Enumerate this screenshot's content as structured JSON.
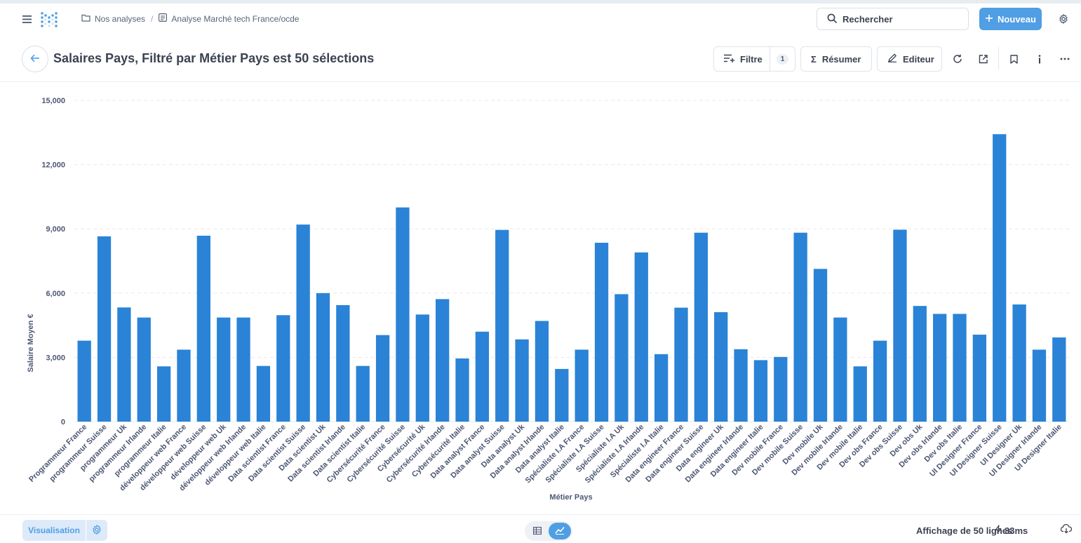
{
  "breadcrumb": {
    "collection": "Nos analyses",
    "separator": "/",
    "model": "Analyse Marché tech France/ocde"
  },
  "search": {
    "label": "Rechercher"
  },
  "nav": {
    "new_label": "Nouveau"
  },
  "header": {
    "title": "Salaires Pays, Filtré par Métier Pays est 50 sélections",
    "filter_label": "Filtre",
    "filter_count": "1",
    "summarize_label": "Résumer",
    "editor_label": "Editeur"
  },
  "footer": {
    "viz_label": "Visualisation",
    "row_count": "Affichage de 50 lignes",
    "timing": "33ms"
  },
  "colors": {
    "bar": "#2a83d6",
    "accent": "#509ee3"
  },
  "chart_data": {
    "type": "bar",
    "xlabel": "Métier Pays",
    "ylabel": "Salaire Moyen €",
    "ylim": [
      0,
      15000
    ],
    "yticks": [
      "0",
      "3,000",
      "6,000",
      "9,000",
      "12,000",
      "15,000"
    ],
    "grid": true,
    "categories": [
      "Programmeur France",
      "programmeur Suisse",
      "programmeur Uk",
      "programmeur Irlande",
      "programmeur Italie",
      "développeur web France",
      "développeur web Suisse",
      "développeur web Uk",
      "développeur web Irlande",
      "développeur web Italie",
      "Data scientist France",
      "Data scientist Suisse",
      "Data scientist Uk",
      "Data scientist Irlande",
      "Data scientist Italie",
      "Cybersécurité France",
      "Cybersécurité Suisse",
      "Cybersécurité Uk",
      "Cybersécurité Irlande",
      "Cybersécurité Italie",
      "Data analyst France",
      "Data analyst Suisse",
      "Data analyst Uk",
      "Data analyst Irlande",
      "Data analyst Italie",
      "Spécialiste I.A France",
      "Spécialiste I.A Suisse",
      "Spécialiste I.A Uk",
      "Spécialiste I.A Irlande",
      "Spécialiste I.A Italie",
      "Data engineer France",
      "Data engineer Suisse",
      "Data engineer Uk",
      "Data engineer Irlande",
      "Data engineer Italie",
      "Dev mobile France",
      "Dev mobile Suisse",
      "Dev mobile Uk",
      "Dev mobile Irlande",
      "Dev mobile Italie",
      "Dev obs France",
      "Dev obs Suisse",
      "Dev obs Uk",
      "Dev obs Irlande",
      "Dev obs Italie",
      "UI Designer France",
      "UI Designer Suisse",
      "UI Designer Uk",
      "UI Designer Irlande",
      "UI Designer Italie"
    ],
    "values": [
      3780,
      8650,
      5330,
      4860,
      2580,
      3360,
      8680,
      4860,
      4860,
      2600,
      4970,
      9200,
      6000,
      5440,
      2600,
      4040,
      10000,
      5000,
      5720,
      2950,
      4200,
      8950,
      3840,
      4700,
      2460,
      3360,
      8350,
      5950,
      7900,
      3150,
      5320,
      8820,
      5110,
      3380,
      2870,
      3020,
      8820,
      7130,
      4860,
      2580,
      3780,
      8960,
      5400,
      5030,
      5030,
      4060,
      13420,
      5470,
      3360,
      3930
    ]
  }
}
